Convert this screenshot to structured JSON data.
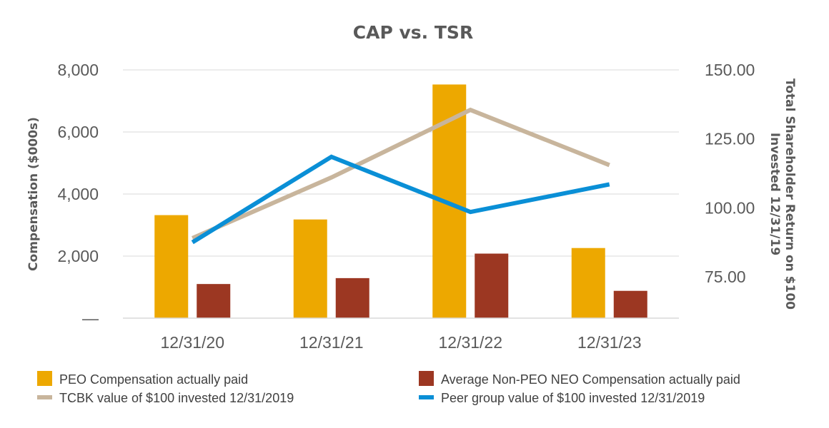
{
  "chart_data": {
    "type": "bar",
    "title": "CAP vs. TSR",
    "categories": [
      "12/31/20",
      "12/31/21",
      "12/31/22",
      "12/31/23"
    ],
    "ylabel": "Compensation ($000s)",
    "y2label_lines": [
      "Total Shareholder Return on $100",
      "Invested 12/31/19"
    ],
    "ylim": [
      0,
      8000
    ],
    "y2lim": [
      60,
      150
    ],
    "y_ticks": [
      0,
      2000,
      4000,
      6000,
      8000
    ],
    "y_tick_labels": [
      "—",
      "2,000",
      "4,000",
      "6,000",
      "8,000"
    ],
    "y2_ticks": [
      75,
      100,
      125,
      150
    ],
    "y2_tick_labels": [
      "75.00",
      "100.00",
      "125.00",
      "150.00"
    ],
    "gridlines": true,
    "legend_position": "bottom",
    "series": [
      {
        "name": "PEO Compensation actually paid",
        "kind": "bar",
        "axis": "left",
        "color": "#EDA800",
        "values": [
          3320,
          3180,
          7530,
          2260
        ]
      },
      {
        "name": "Average Non-PEO NEO Compensation actually paid",
        "kind": "bar",
        "axis": "left",
        "color": "#9C3722",
        "values": [
          1100,
          1290,
          2080,
          880
        ]
      },
      {
        "name": "TCBK value of $100 invested 12/31/2019",
        "kind": "line",
        "axis": "right",
        "color": "#C8B59C",
        "values": [
          89,
          111,
          135.5,
          115.5
        ]
      },
      {
        "name": "Peer group value of $100 invested 12/31/2019",
        "kind": "line",
        "axis": "right",
        "color": "#0A8FD6",
        "values": [
          87.5,
          118.5,
          98.5,
          108.5
        ]
      }
    ]
  }
}
